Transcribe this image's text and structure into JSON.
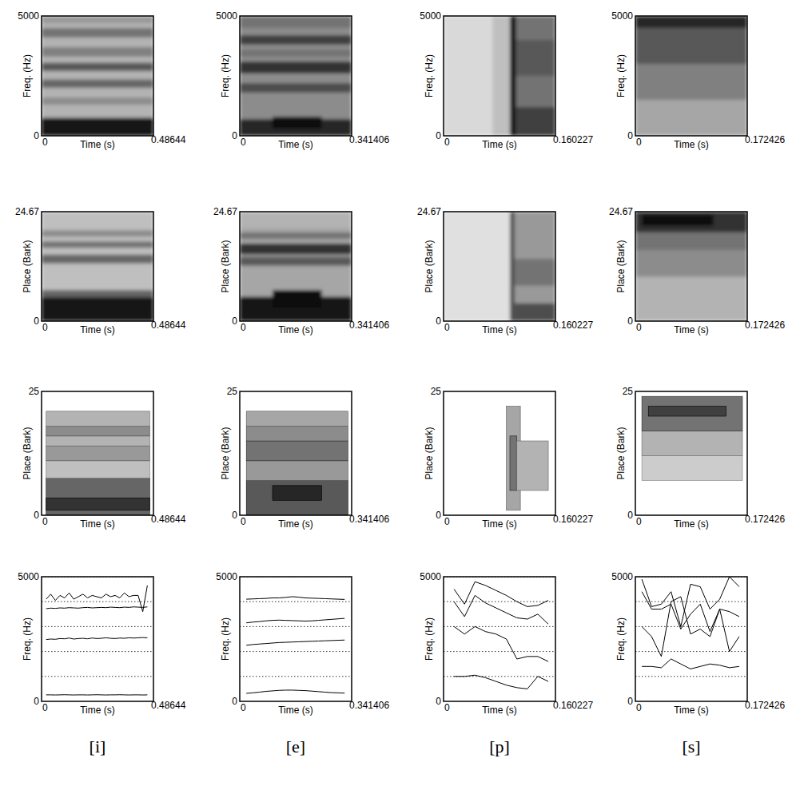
{
  "chart_data": [
    {
      "type": "heatmap",
      "xlim": [
        0,
        0.48644
      ],
      "xticks": [
        0,
        0.48644
      ],
      "ylim": [
        0,
        5000
      ],
      "yticks": [
        0,
        5000
      ],
      "x_label": "Time (s)",
      "y_label": "Freq. (Hz)",
      "cells": [
        [
          0,
          0.48644,
          0,
          5000,
          0.3
        ],
        [
          0,
          0.48644,
          0,
          750,
          0.92
        ],
        [
          0,
          0.48644,
          1300,
          1600,
          0.45
        ],
        [
          0,
          0.48644,
          2000,
          2350,
          0.6
        ],
        [
          0,
          0.48644,
          2700,
          3050,
          0.65
        ],
        [
          0,
          0.48644,
          3300,
          3700,
          0.5
        ],
        [
          0,
          0.48644,
          4100,
          4500,
          0.55
        ],
        [
          0,
          0.48644,
          4700,
          5000,
          0.4
        ]
      ]
    },
    {
      "type": "heatmap",
      "xlim": [
        0,
        0.341406
      ],
      "xticks": [
        0,
        0.341406
      ],
      "ylim": [
        0,
        5000
      ],
      "yticks": [
        0,
        5000
      ],
      "x_label": "Time (s)",
      "y_label": "Freq. (Hz)",
      "cells": [
        [
          0,
          0.341406,
          0,
          5000,
          0.45
        ],
        [
          0,
          0.341406,
          0,
          700,
          0.85
        ],
        [
          0.1,
          0.25,
          300,
          800,
          0.95
        ],
        [
          0,
          0.341406,
          1800,
          2200,
          0.7
        ],
        [
          0,
          0.341406,
          2600,
          3100,
          0.8
        ],
        [
          0,
          0.341406,
          3300,
          3600,
          0.55
        ],
        [
          0,
          0.341406,
          3800,
          4200,
          0.75
        ],
        [
          0,
          0.341406,
          4500,
          5000,
          0.55
        ]
      ]
    },
    {
      "type": "heatmap",
      "xlim": [
        0,
        0.160227
      ],
      "xticks": [
        0,
        0.160227
      ],
      "ylim": [
        0,
        5000
      ],
      "yticks": [
        0,
        5000
      ],
      "x_label": "Time (s)",
      "y_label": "Freq. (Hz)",
      "cells": [
        [
          0,
          0.160227,
          0,
          5000,
          0.15
        ],
        [
          0.07,
          0.095,
          0,
          5000,
          0.25
        ],
        [
          0.095,
          0.104,
          0,
          5000,
          0.9
        ],
        [
          0.104,
          0.160227,
          0,
          5000,
          0.55
        ],
        [
          0.104,
          0.160227,
          0,
          1200,
          0.75
        ],
        [
          0.104,
          0.160227,
          2500,
          4000,
          0.65
        ]
      ]
    },
    {
      "type": "heatmap",
      "xlim": [
        0,
        0.172426
      ],
      "xticks": [
        0,
        0.172426
      ],
      "ylim": [
        0,
        5000
      ],
      "yticks": [
        0,
        5000
      ],
      "x_label": "Time (s)",
      "y_label": "Freq. (Hz)",
      "cells": [
        [
          0,
          0.172426,
          0,
          5000,
          0.35
        ],
        [
          0,
          0.172426,
          1500,
          3000,
          0.5
        ],
        [
          0,
          0.172426,
          3000,
          4500,
          0.65
        ],
        [
          0,
          0.172426,
          4500,
          5000,
          0.85
        ]
      ]
    },
    {
      "type": "heatmap",
      "xlim": [
        0,
        0.48644
      ],
      "xticks": [
        0,
        0.48644
      ],
      "ylim": [
        0,
        24.67
      ],
      "yticks": [
        0,
        24.67
      ],
      "x_label": "Time (s)",
      "y_label": "Place (Bark)",
      "cells": [
        [
          0,
          0.48644,
          0,
          24.67,
          0.25
        ],
        [
          0,
          0.48644,
          0,
          5.5,
          0.92
        ],
        [
          0,
          0.48644,
          5.5,
          7,
          0.6
        ],
        [
          0,
          0.48644,
          13,
          15,
          0.6
        ],
        [
          0,
          0.48644,
          16.5,
          18,
          0.55
        ],
        [
          0,
          0.48644,
          19,
          20.5,
          0.45
        ]
      ]
    },
    {
      "type": "heatmap",
      "xlim": [
        0,
        0.341406
      ],
      "xticks": [
        0,
        0.341406
      ],
      "ylim": [
        0,
        24.67
      ],
      "yticks": [
        0,
        24.67
      ],
      "x_label": "Time (s)",
      "y_label": "Place (Bark)",
      "cells": [
        [
          0,
          0.341406,
          0,
          24.67,
          0.35
        ],
        [
          0,
          0.341406,
          0,
          5.5,
          0.9
        ],
        [
          0.1,
          0.25,
          3,
          7,
          0.95
        ],
        [
          0,
          0.341406,
          12.5,
          14.5,
          0.65
        ],
        [
          0,
          0.341406,
          15,
          17.5,
          0.8
        ],
        [
          0,
          0.341406,
          18.5,
          20,
          0.55
        ],
        [
          0,
          0.341406,
          21,
          24.67,
          0.3
        ]
      ]
    },
    {
      "type": "heatmap",
      "xlim": [
        0,
        0.160227
      ],
      "xticks": [
        0,
        0.160227
      ],
      "ylim": [
        0,
        24.67
      ],
      "yticks": [
        0,
        24.67
      ],
      "x_label": "Time (s)",
      "y_label": "Place (Bark)",
      "cells": [
        [
          0,
          0.160227,
          0,
          24.67,
          0.12
        ],
        [
          0.095,
          0.102,
          0,
          24.67,
          0.7
        ],
        [
          0.102,
          0.160227,
          0,
          24.67,
          0.4
        ],
        [
          0.102,
          0.160227,
          0,
          4,
          0.7
        ],
        [
          0.102,
          0.160227,
          8,
          14,
          0.55
        ]
      ]
    },
    {
      "type": "heatmap",
      "xlim": [
        0,
        0.172426
      ],
      "xticks": [
        0,
        0.172426
      ],
      "ylim": [
        0,
        24.67
      ],
      "yticks": [
        0,
        24.67
      ],
      "x_label": "Time (s)",
      "y_label": "Place (Bark)",
      "cells": [
        [
          0,
          0.172426,
          0,
          24.67,
          0.3
        ],
        [
          0,
          0.172426,
          10,
          16,
          0.45
        ],
        [
          0,
          0.172426,
          16,
          20,
          0.55
        ],
        [
          0,
          0.172426,
          20,
          24.67,
          0.8
        ],
        [
          0.01,
          0.12,
          21.5,
          24,
          0.95
        ]
      ]
    },
    {
      "type": "contour",
      "xlim": [
        0,
        0.48644
      ],
      "xticks": [
        0,
        0.48644
      ],
      "ylim": [
        0,
        25
      ],
      "yticks": [
        0,
        25
      ],
      "x_label": "Time (s)",
      "y_label": "Place (Bark)",
      "cells": [
        [
          0.02,
          0.47,
          0,
          7.5,
          0.6
        ],
        [
          0.02,
          0.47,
          1,
          3.5,
          0.8
        ],
        [
          0.02,
          0.47,
          7.5,
          11,
          0.25
        ],
        [
          0.02,
          0.47,
          11,
          14,
          0.4
        ],
        [
          0.02,
          0.47,
          14,
          16,
          0.3
        ],
        [
          0.02,
          0.47,
          16,
          18,
          0.45
        ],
        [
          0.02,
          0.47,
          18,
          21,
          0.3
        ]
      ]
    },
    {
      "type": "contour",
      "xlim": [
        0,
        0.341406
      ],
      "xticks": [
        0,
        0.341406
      ],
      "ylim": [
        0,
        25
      ],
      "yticks": [
        0,
        25
      ],
      "x_label": "Time (s)",
      "y_label": "Place (Bark)",
      "cells": [
        [
          0.02,
          0.33,
          0,
          7,
          0.65
        ],
        [
          0.1,
          0.25,
          3,
          6,
          0.85
        ],
        [
          0.02,
          0.33,
          7,
          11,
          0.4
        ],
        [
          0.02,
          0.33,
          11,
          15,
          0.55
        ],
        [
          0.02,
          0.33,
          15,
          18,
          0.45
        ],
        [
          0.02,
          0.33,
          18,
          21,
          0.35
        ]
      ]
    },
    {
      "type": "contour",
      "xlim": [
        0,
        0.160227
      ],
      "xticks": [
        0,
        0.160227
      ],
      "ylim": [
        0,
        25
      ],
      "yticks": [
        0,
        25
      ],
      "x_label": "Time (s)",
      "y_label": "Place (Bark)",
      "cells": [
        [
          0.09,
          0.11,
          1,
          22,
          0.35
        ],
        [
          0.095,
          0.105,
          5,
          16,
          0.55
        ],
        [
          0.105,
          0.15,
          5,
          15,
          0.3
        ]
      ]
    },
    {
      "type": "contour",
      "xlim": [
        0,
        0.172426
      ],
      "xticks": [
        0,
        0.172426
      ],
      "ylim": [
        0,
        25
      ],
      "yticks": [
        0,
        25
      ],
      "x_label": "Time (s)",
      "y_label": "Place (Bark)",
      "cells": [
        [
          0.01,
          0.165,
          7,
          12,
          0.2
        ],
        [
          0.01,
          0.165,
          12,
          17,
          0.3
        ],
        [
          0.01,
          0.165,
          17,
          24,
          0.55
        ],
        [
          0.02,
          0.14,
          20,
          22,
          0.75
        ]
      ]
    },
    {
      "type": "line",
      "title": "[i]",
      "xlim": [
        0,
        0.48644
      ],
      "xticks": [
        0,
        0.48644
      ],
      "ylim": [
        0,
        5000
      ],
      "yticks": [
        0,
        5000
      ],
      "x_label": "Time (s)",
      "y_label": "Freq. (Hz)",
      "grid": true,
      "grid_lines": [
        1000,
        2000,
        3000,
        4000,
        5000
      ],
      "x": [
        0.02,
        0.04,
        0.06,
        0.08,
        0.1,
        0.12,
        0.14,
        0.16,
        0.18,
        0.2,
        0.22,
        0.24,
        0.26,
        0.28,
        0.3,
        0.32,
        0.34,
        0.36,
        0.38,
        0.4,
        0.42,
        0.44,
        0.46
      ],
      "series": [
        {
          "color": "#000000",
          "values": [
            260,
            260,
            255,
            260,
            265,
            260,
            255,
            260,
            260,
            255,
            260,
            265,
            260,
            255,
            260,
            260,
            265,
            260,
            255,
            260,
            260,
            255,
            260
          ]
        },
        {
          "color": "#000000",
          "values": [
            2480,
            2500,
            2490,
            2520,
            2510,
            2540,
            2500,
            2520,
            2530,
            2510,
            2540,
            2520,
            2530,
            2550,
            2530,
            2520,
            2540,
            2530,
            2550,
            2540,
            2550,
            2560,
            2550
          ]
        },
        {
          "color": "#000000",
          "values": [
            3720,
            3740,
            3730,
            3750,
            3740,
            3760,
            3750,
            3740,
            3760,
            3770,
            3750,
            3760,
            3770,
            3760,
            3780,
            3770,
            3760,
            3780,
            3770,
            3790,
            3780,
            3770,
            3790
          ]
        },
        {
          "color": "#000000",
          "values": [
            4100,
            4300,
            4050,
            4250,
            4150,
            4350,
            4100,
            4200,
            4300,
            4150,
            4250,
            4200,
            4150,
            4300,
            4200,
            4250,
            4150,
            4350,
            4200,
            4250,
            4250,
            3600,
            4650
          ]
        }
      ]
    },
    {
      "type": "line",
      "title": "[e]",
      "xlim": [
        0,
        0.341406
      ],
      "xticks": [
        0,
        0.341406
      ],
      "ylim": [
        0,
        5000
      ],
      "yticks": [
        0,
        5000
      ],
      "x_label": "Time (s)",
      "y_label": "Freq. (Hz)",
      "grid": true,
      "grid_lines": [
        1000,
        2000,
        3000,
        4000,
        5000
      ],
      "x": [
        0.02,
        0.04,
        0.06,
        0.08,
        0.1,
        0.12,
        0.14,
        0.16,
        0.18,
        0.2,
        0.22,
        0.24,
        0.26,
        0.28,
        0.3,
        0.32
      ],
      "series": [
        {
          "color": "#000000",
          "values": [
            320,
            340,
            370,
            400,
            420,
            440,
            450,
            450,
            440,
            430,
            410,
            390,
            370,
            350,
            340,
            330
          ]
        },
        {
          "color": "#000000",
          "values": [
            2250,
            2280,
            2300,
            2320,
            2340,
            2360,
            2370,
            2380,
            2390,
            2400,
            2410,
            2420,
            2430,
            2440,
            2450,
            2460
          ]
        },
        {
          "color": "#000000",
          "values": [
            3150,
            3180,
            3200,
            3230,
            3250,
            3260,
            3250,
            3240,
            3230,
            3220,
            3230,
            3250,
            3270,
            3290,
            3310,
            3330
          ]
        },
        {
          "color": "#000000",
          "values": [
            4100,
            4110,
            4120,
            4130,
            4150,
            4150,
            4170,
            4200,
            4180,
            4150,
            4140,
            4130,
            4120,
            4110,
            4100,
            4090
          ]
        }
      ]
    },
    {
      "type": "line",
      "title": "[p]",
      "xlim": [
        0,
        0.160227
      ],
      "xticks": [
        0,
        0.160227
      ],
      "ylim": [
        0,
        5000
      ],
      "yticks": [
        0,
        5000
      ],
      "x_label": "Time (s)",
      "y_label": "Freq. (Hz)",
      "grid": true,
      "grid_lines": [
        1000,
        2000,
        3000,
        4000,
        5000
      ],
      "x": [
        0.015,
        0.03,
        0.045,
        0.06,
        0.075,
        0.09,
        0.105,
        0.12,
        0.135,
        0.15
      ],
      "series": [
        {
          "color": "#000000",
          "values": [
            4500,
            3900,
            4800,
            4650,
            4450,
            4250,
            4000,
            3800,
            3850,
            4050
          ]
        },
        {
          "color": "#000000",
          "values": [
            4000,
            3400,
            4250,
            3950,
            3750,
            3550,
            3350,
            3300,
            3500,
            3100
          ]
        },
        {
          "color": "#000000",
          "values": [
            3000,
            2700,
            3000,
            2800,
            2700,
            2500,
            1700,
            1800,
            1800,
            1600
          ]
        },
        {
          "color": "#000000",
          "values": [
            1000,
            1000,
            1050,
            950,
            800,
            650,
            550,
            500,
            1000,
            800
          ]
        }
      ]
    },
    {
      "type": "line",
      "title": "[s]",
      "xlim": [
        0,
        0.172426
      ],
      "xticks": [
        0,
        0.172426
      ],
      "ylim": [
        0,
        5000
      ],
      "yticks": [
        0,
        5000
      ],
      "x_label": "Time (s)",
      "y_label": "Freq. (Hz)",
      "grid": true,
      "grid_lines": [
        1000,
        2000,
        3000,
        4000,
        5000
      ],
      "x": [
        0.01,
        0.025,
        0.04,
        0.055,
        0.07,
        0.085,
        0.1,
        0.115,
        0.13,
        0.145,
        0.16
      ],
      "series": [
        {
          "color": "#000000",
          "values": [
            4900,
            3800,
            3900,
            4400,
            3000,
            4700,
            4600,
            3700,
            4100,
            5000,
            4600
          ]
        },
        {
          "color": "#000000",
          "values": [
            4400,
            3700,
            3700,
            3900,
            2900,
            3500,
            3900,
            2800,
            3700,
            3600,
            3400
          ]
        },
        {
          "color": "#000000",
          "values": [
            3000,
            2600,
            1800,
            4000,
            4200,
            2700,
            2900,
            2600,
            3700,
            2000,
            2600
          ]
        },
        {
          "color": "#000000",
          "values": [
            1400,
            1400,
            1350,
            1700,
            1500,
            1300,
            1400,
            1500,
            1450,
            1350,
            1400
          ]
        }
      ]
    }
  ]
}
